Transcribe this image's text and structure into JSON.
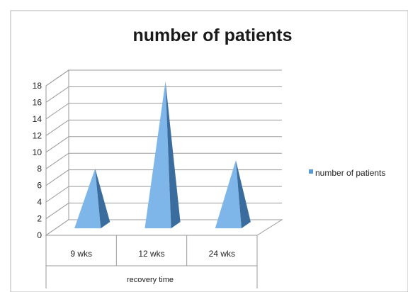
{
  "chart_data": {
    "type": "bar",
    "style": "3d-pyramid",
    "title": "number of patients",
    "xlabel": "recovery time",
    "ylabel": "",
    "categories": [
      "9 wks",
      "12 wks",
      "24 wks"
    ],
    "series": [
      {
        "name": "number of patients",
        "values": [
          7,
          17.5,
          8
        ]
      }
    ],
    "ylim": [
      0,
      18
    ],
    "yticks": [
      "0",
      "2",
      "4",
      "6",
      "8",
      "10",
      "12",
      "14",
      "16",
      "18"
    ],
    "grid": true,
    "legend": "right",
    "colors": {
      "series": "#5b9bd5",
      "series_light": "#7eb6ea",
      "series_dark": "#3a6d9e",
      "grid": "#9a9a9a",
      "border": "#b5b5b5"
    }
  }
}
